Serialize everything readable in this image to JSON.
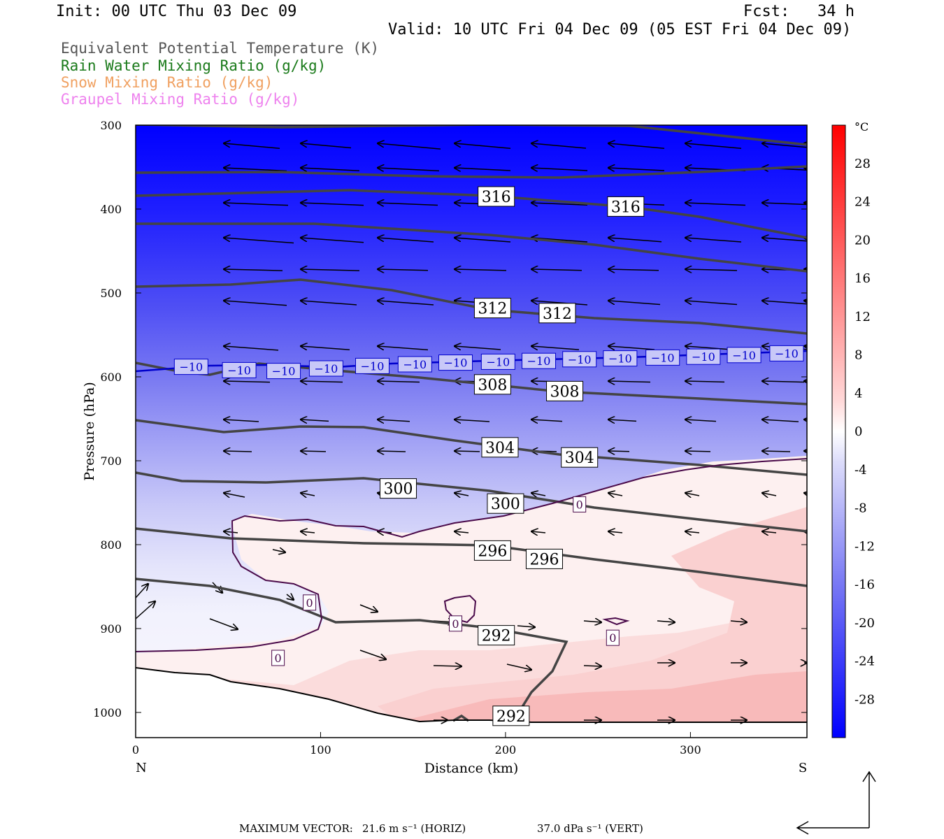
{
  "header": {
    "init": "Init: 00 UTC Thu 03 Dec 09",
    "fcst": "Fcst:   34 h",
    "valid": "Valid: 10 UTC Fri 04 Dec 09 (05 EST Fri 04 Dec 09)"
  },
  "legend": [
    {
      "text": "Equivalent Potential Temperature (K)",
      "color": "#555555"
    },
    {
      "text": "Rain Water Mixing Ratio (g/kg)",
      "color": "#1a7a1a"
    },
    {
      "text": "Snow Mixing Ratio (g/kg)",
      "color": "#f0a060"
    },
    {
      "text": "Graupel Mixing Ratio (g/kg)",
      "color": "#ee82ee"
    }
  ],
  "footer": {
    "label": "MAXIMUM VECTOR:",
    "horiz": "21.6 m s⁻¹ (HORIZ)",
    "vert": "37.0 dPa s⁻¹ (VERT)"
  },
  "chart_data": {
    "type": "contour-cross-section",
    "xlabel": "Distance (km)",
    "ylabel": "Pressure (hPa)",
    "xlim": [
      0,
      363
    ],
    "ylim": [
      300,
      1030
    ],
    "x_ticks": [
      0,
      100,
      200,
      300
    ],
    "y_ticks": [
      300,
      400,
      500,
      600,
      700,
      800,
      900,
      1000
    ],
    "end_labels": {
      "left": "N",
      "right": "S"
    },
    "colorbar": {
      "unit": "°C",
      "range": [
        -32,
        32
      ],
      "ticks": [
        28,
        24,
        20,
        16,
        12,
        8,
        4,
        0,
        -4,
        -8,
        -12,
        -16,
        -20,
        -24,
        -28
      ]
    },
    "theta_e_labels": [
      {
        "text": "316",
        "x": 195,
        "p": 385
      },
      {
        "text": "316",
        "x": 265,
        "p": 397
      },
      {
        "text": "312",
        "x": 193,
        "p": 518
      },
      {
        "text": "312",
        "x": 228,
        "p": 524
      },
      {
        "text": "308",
        "x": 193,
        "p": 609
      },
      {
        "text": "308",
        "x": 232,
        "p": 617
      },
      {
        "text": "304",
        "x": 197,
        "p": 684
      },
      {
        "text": "304",
        "x": 240,
        "p": 696
      },
      {
        "text": "300",
        "x": 142,
        "p": 733
      },
      {
        "text": "300",
        "x": 200,
        "p": 751
      },
      {
        "text": "296",
        "x": 193,
        "p": 807
      },
      {
        "text": "296",
        "x": 221,
        "p": 817
      },
      {
        "text": "292",
        "x": 195,
        "p": 908
      },
      {
        "text": "292",
        "x": 203,
        "p": 1004
      }
    ],
    "temp_labels": [
      {
        "text": "−10",
        "x": 30,
        "p": 588
      },
      {
        "text": "−10",
        "x": 56,
        "p": 592
      },
      {
        "text": "−10",
        "x": 80,
        "p": 593
      },
      {
        "text": "−10",
        "x": 103,
        "p": 590
      },
      {
        "text": "−10",
        "x": 128,
        "p": 587
      },
      {
        "text": "−10",
        "x": 151,
        "p": 585
      },
      {
        "text": "−10",
        "x": 173,
        "p": 583
      },
      {
        "text": "−10",
        "x": 196,
        "p": 582
      },
      {
        "text": "−10",
        "x": 218,
        "p": 581
      },
      {
        "text": "−10",
        "x": 240,
        "p": 579
      },
      {
        "text": "−10",
        "x": 262,
        "p": 578
      },
      {
        "text": "−10",
        "x": 285,
        "p": 577
      },
      {
        "text": "−10",
        "x": 307,
        "p": 576
      },
      {
        "text": "−10",
        "x": 329,
        "p": 574
      },
      {
        "text": "−10",
        "x": 352,
        "p": 572
      },
      {
        "text": "0",
        "x": 240,
        "p": 752
      },
      {
        "text": "0",
        "x": 94,
        "p": 869
      },
      {
        "text": "0",
        "x": 173,
        "p": 894
      },
      {
        "text": "0",
        "x": 77,
        "p": 935
      },
      {
        "text": "0",
        "x": 258,
        "p": 911
      }
    ]
  }
}
